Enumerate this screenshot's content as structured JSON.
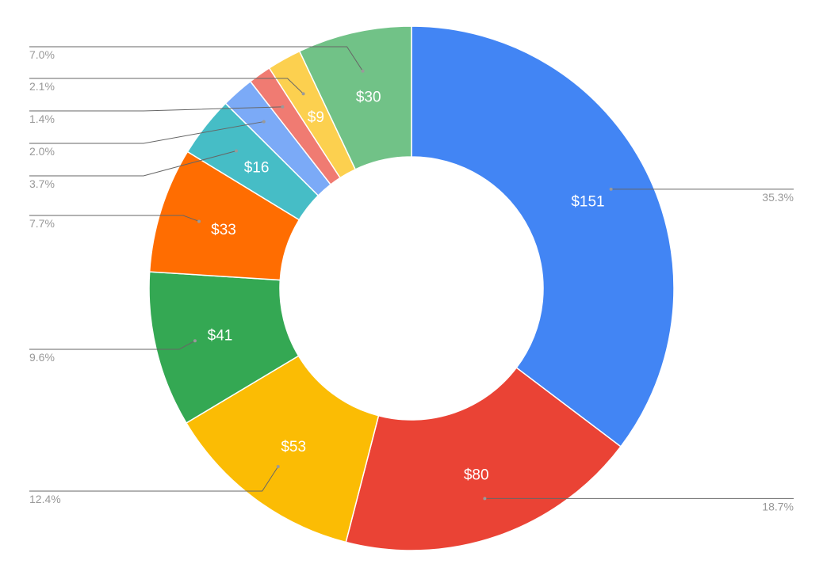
{
  "chart_data": {
    "type": "pie",
    "variant": "donut",
    "title": "",
    "slices": [
      {
        "value": 151,
        "label": "$151",
        "percent": "35.3%",
        "color": "#4285F4"
      },
      {
        "value": 80,
        "label": "$80",
        "percent": "18.7%",
        "color": "#EA4335"
      },
      {
        "value": 53,
        "label": "$53",
        "percent": "12.4%",
        "color": "#FBBC04"
      },
      {
        "value": 41,
        "label": "$41",
        "percent": "9.6%",
        "color": "#34A853"
      },
      {
        "value": 33,
        "label": "$33",
        "percent": "7.7%",
        "color": "#FF6D01"
      },
      {
        "value": 16,
        "label": "$16",
        "percent": "3.7%",
        "color": "#46BDC6"
      },
      {
        "value": 8.6,
        "label": "",
        "percent": "2.0%",
        "color": "#7BAAF7"
      },
      {
        "value": 6,
        "label": "",
        "percent": "1.4%",
        "color": "#F07B72"
      },
      {
        "value": 9,
        "label": "$9",
        "percent": "2.1%",
        "color": "#FCD04F"
      },
      {
        "value": 30,
        "label": "$30",
        "percent": "7.0%",
        "color": "#71C287"
      }
    ],
    "start_angle": "12 o'clock",
    "direction": "clockwise",
    "legend": "none"
  }
}
